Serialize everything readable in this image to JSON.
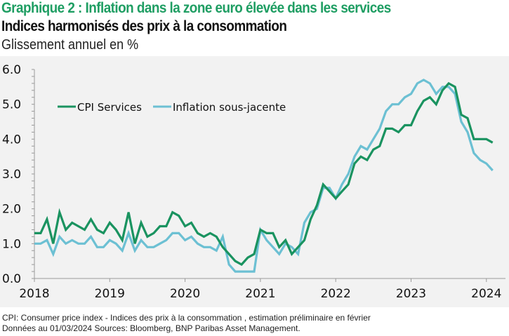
{
  "header": {
    "title": "Graphique 2 : Inflation dans la zone euro élevée dans les services",
    "subtitle": "Indices harmonisés des prix à la consommation",
    "unit": "Glissement annuel en %"
  },
  "footer": {
    "line1": "CPI: Consumer price index - Indices des prix à la consommation , estimation préliminaire en février",
    "line2": "Données au 01/03/2024 Sources: Bloomberg, BNP Paribas Asset Management."
  },
  "chart_data": {
    "type": "line",
    "title": "Graphique 2 : Inflation dans la zone euro élevée dans les services",
    "subtitle": "Indices harmonisés des prix à la consommation",
    "ylabel": "Glissement annuel en %",
    "xlabel": "",
    "x_start": "2018-01",
    "x_end": "2024-02",
    "x_frequency": "monthly",
    "xlim": [
      2018.0,
      2024.25
    ],
    "ylim": [
      0,
      6
    ],
    "x_ticks": [
      "2018",
      "2019",
      "2020",
      "2021",
      "2022",
      "2023",
      "2024"
    ],
    "y_ticks": [
      "0.0",
      "1.0",
      "2.0",
      "3.0",
      "4.0",
      "5.0",
      "6.0"
    ],
    "y_minor_step": 0.2,
    "grid": false,
    "legend_position": "top-left",
    "series": [
      {
        "name": "CPI Services",
        "color": "#1a9360",
        "values": [
          1.3,
          1.3,
          1.7,
          1.0,
          1.9,
          1.4,
          1.6,
          1.5,
          1.4,
          1.7,
          1.4,
          1.3,
          1.6,
          1.4,
          1.1,
          1.9,
          1.0,
          1.6,
          1.2,
          1.3,
          1.5,
          1.5,
          1.9,
          1.8,
          1.5,
          1.6,
          1.3,
          1.2,
          1.3,
          1.2,
          0.9,
          0.7,
          0.5,
          0.4,
          0.6,
          0.7,
          1.4,
          1.3,
          1.3,
          0.9,
          1.1,
          0.7,
          0.9,
          1.1,
          1.7,
          2.1,
          2.7,
          2.5,
          2.3,
          2.5,
          2.7,
          3.3,
          3.5,
          3.4,
          3.7,
          3.8,
          4.3,
          4.3,
          4.2,
          4.4,
          4.4,
          4.8,
          5.1,
          5.2,
          5.0,
          5.4,
          5.6,
          5.5,
          4.7,
          4.6,
          4.0,
          4.0,
          4.0,
          3.9
        ]
      },
      {
        "name": "Inflation sous-jacente",
        "color": "#6cc0d3",
        "values": [
          1.0,
          1.0,
          1.1,
          0.7,
          1.2,
          1.0,
          1.1,
          1.0,
          1.0,
          1.2,
          0.9,
          0.9,
          1.1,
          1.0,
          0.8,
          1.3,
          0.8,
          1.1,
          0.9,
          0.9,
          1.0,
          1.1,
          1.3,
          1.3,
          1.1,
          1.2,
          1.0,
          0.9,
          0.9,
          0.8,
          1.2,
          0.4,
          0.2,
          0.2,
          0.2,
          0.2,
          1.4,
          1.1,
          0.9,
          0.7,
          1.0,
          0.9,
          0.7,
          1.6,
          1.9,
          2.0,
          2.6,
          2.6,
          2.3,
          2.7,
          3.0,
          3.5,
          3.8,
          3.7,
          4.0,
          4.3,
          4.8,
          5.0,
          5.0,
          5.2,
          5.3,
          5.6,
          5.7,
          5.6,
          5.3,
          5.5,
          5.5,
          5.3,
          4.5,
          4.2,
          3.6,
          3.4,
          3.3,
          3.1
        ]
      }
    ]
  }
}
